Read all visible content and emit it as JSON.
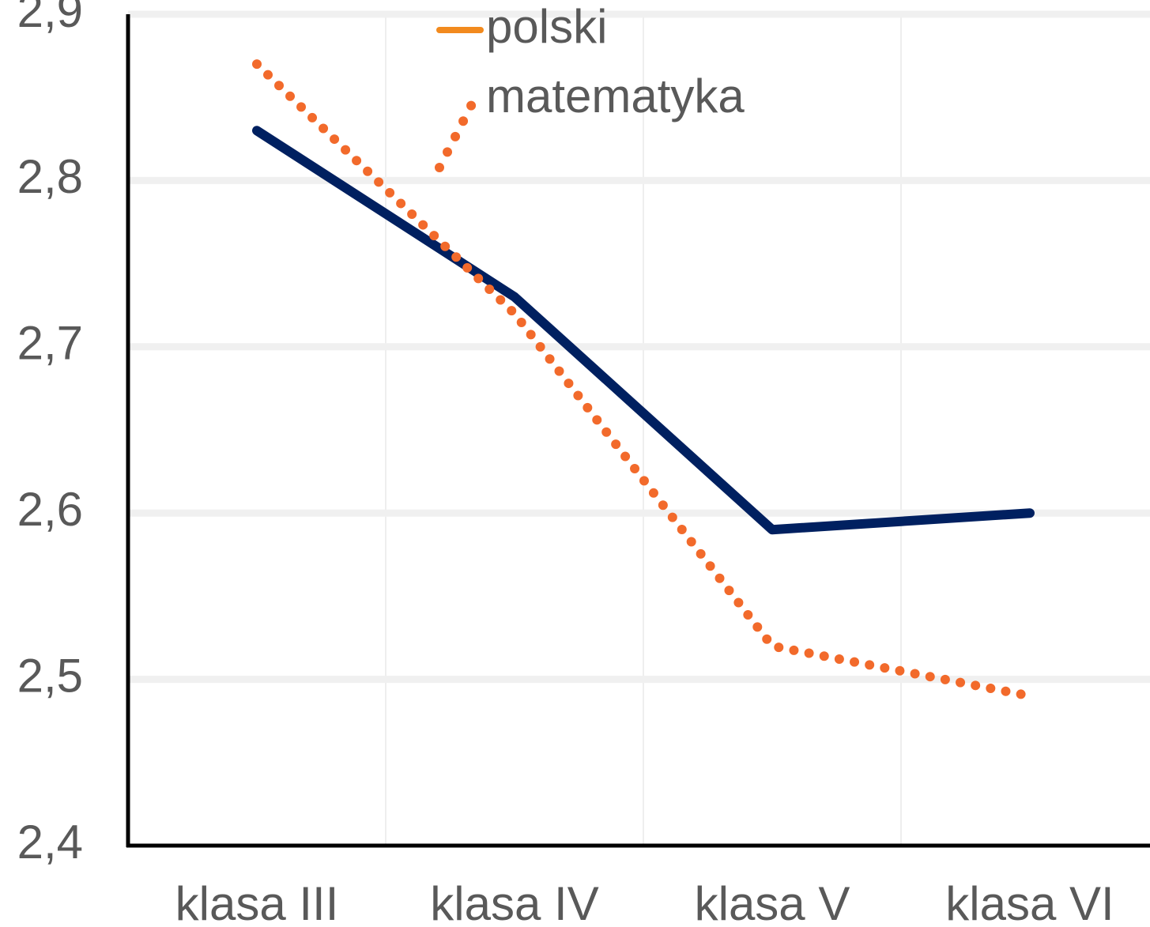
{
  "chart_data": {
    "type": "line",
    "categories": [
      "klasa III",
      "klasa IV",
      "klasa V",
      "klasa VI"
    ],
    "series": [
      {
        "name": "polski",
        "color": "#f28a1e",
        "line_color": "#002060",
        "values": [
          2.83,
          2.73,
          2.59,
          2.6
        ]
      },
      {
        "name": "matematyka",
        "color": "#f26a2b",
        "dotted": true,
        "values": [
          2.87,
          2.72,
          2.52,
          2.49
        ]
      }
    ],
    "ylim": [
      2.4,
      2.9
    ],
    "yticks": [
      {
        "value": 2.4,
        "label": "2,4"
      },
      {
        "value": 2.5,
        "label": "2,5"
      },
      {
        "value": 2.6,
        "label": "2,6"
      },
      {
        "value": 2.7,
        "label": "2,7"
      },
      {
        "value": 2.8,
        "label": "2,8"
      },
      {
        "value": 2.9,
        "label": "2,9"
      }
    ],
    "grid": true
  }
}
